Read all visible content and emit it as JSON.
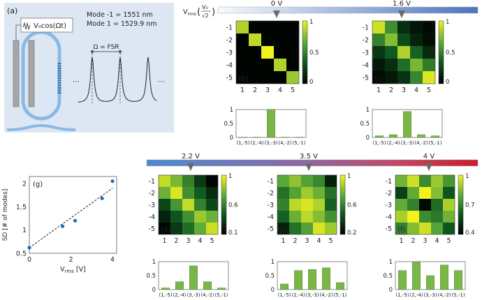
{
  "panel_a": {
    "label": "(a)",
    "drive": "V₀cos(Ωt)",
    "mode_neg1": "Mode -1 = 1551 nm",
    "mode_pos1": "Mode 1 = 1529.9 nm",
    "omega_label": "Ω = FSR",
    "ellipsis": "⋯"
  },
  "top_bar": {
    "vrms_label": "V",
    "vrms_sub": "rms",
    "v0": "V₀",
    "sqrt2": "√2",
    "markers": [
      "0 V",
      "1.6 V"
    ]
  },
  "bottom_bar": {
    "markers": [
      "2.2 V",
      "3.5 V",
      "4 V"
    ]
  },
  "matrix_axis": {
    "rows": [
      "-1",
      "-2",
      "-3",
      "-4",
      "-5"
    ],
    "cols": [
      "1",
      "2",
      "3",
      "4",
      "5"
    ]
  },
  "bar_categories": [
    "(1,-5)",
    "(2,-4)",
    "(3,-3)",
    "(4,-2)",
    "(5,-1)"
  ],
  "colors": {
    "bar": "#7ab648",
    "bar_edge": "#4e7f27",
    "point": "#1b6fc2"
  },
  "chart_data": [
    {
      "type": "heatmap",
      "panel": "(b)",
      "voltage": "0 V",
      "clim": [
        0,
        1
      ],
      "colorbar_ticks": [
        "1",
        "0.5",
        "0"
      ],
      "values": [
        [
          0.85,
          0.02,
          0.02,
          0.02,
          0.02
        ],
        [
          0.02,
          0.88,
          0.02,
          0.02,
          0.02
        ],
        [
          0.02,
          0.02,
          1.0,
          0.02,
          0.02
        ],
        [
          0.02,
          0.02,
          0.02,
          0.85,
          0.02
        ],
        [
          0.02,
          0.02,
          0.02,
          0.02,
          0.8
        ]
      ]
    },
    {
      "type": "heatmap",
      "panel": "(c)",
      "voltage": "1.6 V",
      "clim": [
        0,
        1
      ],
      "colorbar_ticks": [
        "1",
        "0.5",
        "0"
      ],
      "values": [
        [
          0.92,
          0.55,
          0.18,
          0.08,
          0.04
        ],
        [
          0.5,
          0.75,
          0.3,
          0.14,
          0.06
        ],
        [
          0.22,
          0.35,
          0.85,
          0.38,
          0.16
        ],
        [
          0.1,
          0.18,
          0.42,
          0.72,
          0.48
        ],
        [
          0.04,
          0.1,
          0.2,
          0.52,
          0.95
        ]
      ]
    },
    {
      "type": "bar",
      "panel": "(b)",
      "categories": [
        "(1,-5)",
        "(2,-4)",
        "(3,-3)",
        "(4,-2)",
        "(5,-1)"
      ],
      "values": [
        0.01,
        0.01,
        1.0,
        0.01,
        0.01
      ],
      "ylim": [
        0,
        1
      ],
      "yticks": [
        "1",
        "0.5",
        "0"
      ]
    },
    {
      "type": "bar",
      "panel": "(c)",
      "categories": [
        "(1,-5)",
        "(2,-4)",
        "(3,-3)",
        "(4,-2)",
        "(5,-1)"
      ],
      "values": [
        0.06,
        0.1,
        0.93,
        0.1,
        0.06
      ],
      "ylim": [
        0,
        1
      ],
      "yticks": [
        "1",
        "0.5",
        "0"
      ]
    },
    {
      "type": "heatmap",
      "panel": "(d)",
      "voltage": "2.2 V",
      "clim": [
        0.1,
        1
      ],
      "colorbar_ticks": [
        "1",
        "0.6",
        "0.1"
      ],
      "values": [
        [
          0.9,
          0.75,
          0.55,
          0.3,
          0.12
        ],
        [
          0.72,
          0.95,
          0.6,
          0.42,
          0.25
        ],
        [
          0.35,
          0.62,
          0.9,
          0.55,
          0.35
        ],
        [
          0.22,
          0.4,
          0.6,
          0.82,
          0.72
        ],
        [
          0.12,
          0.3,
          0.48,
          0.7,
          0.92
        ]
      ]
    },
    {
      "type": "heatmap",
      "panel": "(e)",
      "voltage": "3.5 V",
      "clim": [
        0.2,
        1
      ],
      "colorbar_ticks": [
        "1",
        "0.6",
        "0.2"
      ],
      "values": [
        [
          0.72,
          0.82,
          0.7,
          0.62,
          0.3
        ],
        [
          0.55,
          0.7,
          0.85,
          0.75,
          0.55
        ],
        [
          0.6,
          0.9,
          0.95,
          0.88,
          0.5
        ],
        [
          0.5,
          0.75,
          0.9,
          0.8,
          0.65
        ],
        [
          0.3,
          0.55,
          0.7,
          0.95,
          0.85
        ]
      ]
    },
    {
      "type": "heatmap",
      "panel": "(f)",
      "voltage": "4 V",
      "clim": [
        0.4,
        1
      ],
      "colorbar_ticks": [
        "1",
        "0.7",
        "0.4"
      ],
      "values": [
        [
          0.82,
          0.95,
          0.72,
          0.88,
          0.75
        ],
        [
          0.55,
          0.8,
          1.0,
          0.85,
          0.6
        ],
        [
          0.8,
          0.7,
          0.42,
          0.65,
          0.9
        ],
        [
          0.9,
          1.0,
          0.72,
          0.68,
          0.82
        ],
        [
          0.7,
          0.85,
          0.95,
          0.78,
          0.6
        ]
      ]
    },
    {
      "type": "bar",
      "panel": "(d)",
      "categories": [
        "(1,-5)",
        "(2,-4)",
        "(3,-3)",
        "(4,-2)",
        "(5,-1)"
      ],
      "values": [
        0.06,
        0.28,
        0.85,
        0.28,
        0.06
      ],
      "ylim": [
        0,
        1
      ],
      "yticks": [
        "1",
        "0.5",
        "0"
      ]
    },
    {
      "type": "bar",
      "panel": "(e)",
      "categories": [
        "(1,-5)",
        "(2,-4)",
        "(3,-3)",
        "(4,-2)",
        "(5,-1)"
      ],
      "values": [
        0.2,
        0.68,
        0.72,
        0.78,
        0.25
      ],
      "ylim": [
        0,
        1
      ],
      "yticks": [
        "1",
        "0.5",
        "0"
      ]
    },
    {
      "type": "bar",
      "panel": "(f)",
      "categories": [
        "(1,-5)",
        "(2,-4)",
        "(3,-3)",
        "(4,-2)",
        "(5,-1)"
      ],
      "values": [
        0.68,
        0.98,
        0.5,
        0.88,
        0.68
      ],
      "ylim": [
        0,
        1
      ],
      "yticks": [
        "1",
        "0.5",
        "0"
      ]
    },
    {
      "type": "scatter",
      "panel": "(g)",
      "x": [
        0,
        1.6,
        2.2,
        3.5,
        4.0
      ],
      "y": [
        0.62,
        1.08,
        1.2,
        1.68,
        2.05
      ],
      "xerr": [
        0.05,
        0.08,
        0.08,
        0.08,
        0.08
      ],
      "fit": {
        "x": [
          0,
          4.0
        ],
        "y": [
          0.62,
          1.9
        ],
        "style": "dashed"
      },
      "xlabel": "V",
      "xlabel_sub": "rms",
      "xlabel_unit": "[V]",
      "ylabel": "SD [# of modes]",
      "xlim": [
        0,
        4.2
      ],
      "ylim": [
        0.5,
        2.15
      ],
      "xticks": [
        "0",
        "2",
        "4"
      ],
      "yticks": [
        "0.5",
        "1",
        "1.5",
        "2"
      ]
    }
  ]
}
